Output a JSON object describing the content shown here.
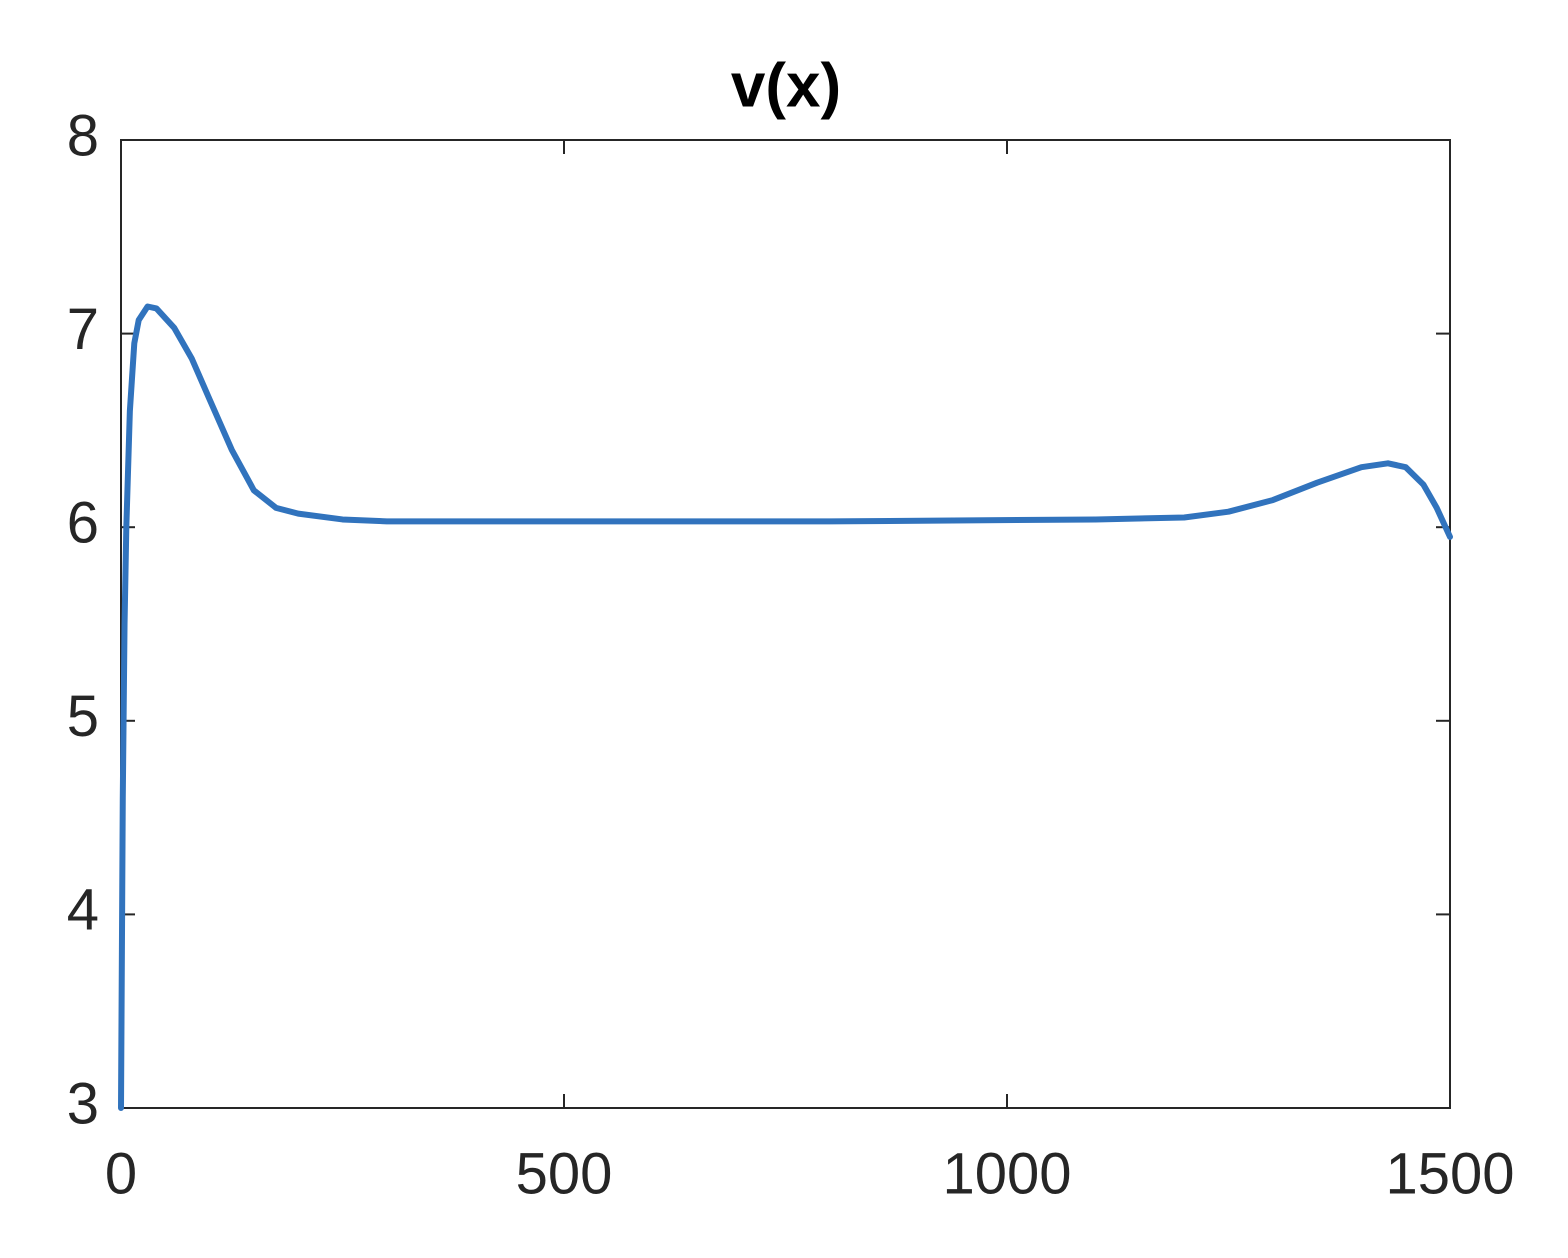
{
  "chart_data": {
    "type": "line",
    "title": "v(x)",
    "x": [
      0,
      2,
      4,
      6,
      10,
      15,
      20,
      30,
      40,
      60,
      80,
      100,
      125,
      150,
      175,
      200,
      250,
      300,
      500,
      800,
      1100,
      1200,
      1250,
      1300,
      1350,
      1400,
      1430,
      1450,
      1470,
      1485,
      1500
    ],
    "series": [
      {
        "name": "v",
        "color": "#3173bd",
        "values": [
          3.0,
          4.6,
          5.5,
          6.0,
          6.6,
          6.95,
          7.07,
          7.14,
          7.13,
          7.03,
          6.87,
          6.66,
          6.4,
          6.19,
          6.1,
          6.07,
          6.04,
          6.03,
          6.03,
          6.03,
          6.04,
          6.05,
          6.08,
          6.14,
          6.23,
          6.31,
          6.33,
          6.31,
          6.22,
          6.1,
          5.95
        ]
      }
    ],
    "xlim": [
      0,
      1500
    ],
    "ylim": [
      3,
      8
    ],
    "xticks": [
      0,
      500,
      1000,
      1500
    ],
    "yticks": [
      3,
      4,
      5,
      6,
      7,
      8
    ]
  }
}
